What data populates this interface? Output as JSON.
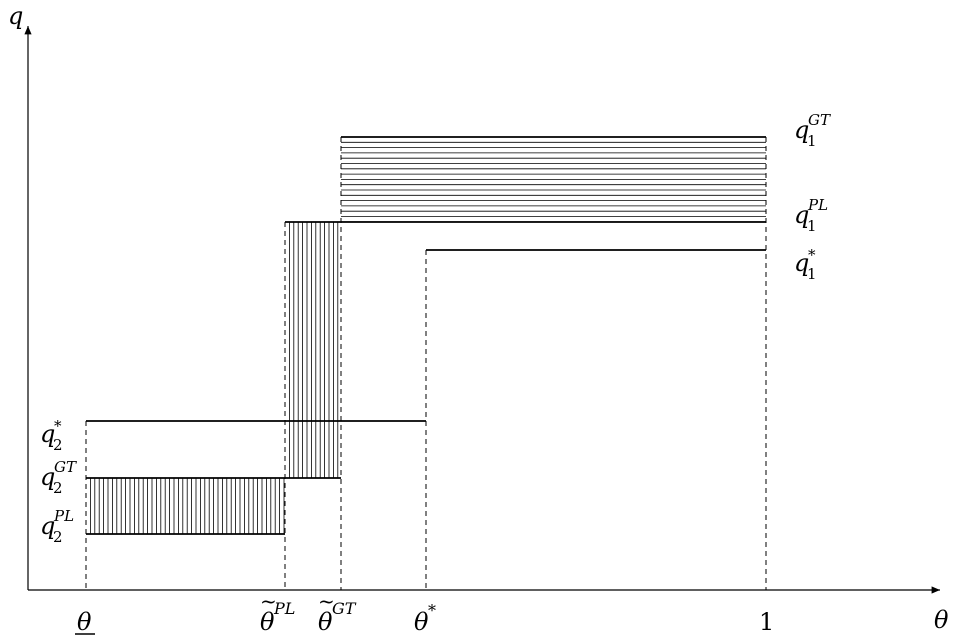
{
  "axes": {
    "y_label": {
      "base": "q"
    },
    "x_label": {
      "base": "θ"
    }
  },
  "x_ticks": [
    {
      "id": "theta-low",
      "base": "θ",
      "sup": "",
      "underline": true,
      "italic": true
    },
    {
      "id": "theta-tilde-pl",
      "base": "θ",
      "sup": "PL",
      "tilde": true,
      "italic": true
    },
    {
      "id": "theta-tilde-gt",
      "base": "θ",
      "sup": "GT",
      "tilde": true,
      "italic": true
    },
    {
      "id": "theta-star",
      "base": "θ",
      "sup": "*",
      "italic": true
    },
    {
      "id": "one",
      "base": "1",
      "sup": "",
      "italic": false
    }
  ],
  "right_labels": [
    {
      "id": "q1-gt",
      "base": "q",
      "sub": "1",
      "sup": "GT"
    },
    {
      "id": "q1-pl",
      "base": "q",
      "sub": "1",
      "sup": "PL"
    },
    {
      "id": "q1-star",
      "base": "q",
      "sub": "1",
      "sup": "*"
    }
  ],
  "left_labels": [
    {
      "id": "q2-star",
      "base": "q",
      "sub": "2",
      "sup": "*"
    },
    {
      "id": "q2-gt",
      "base": "q",
      "sub": "2",
      "sup": "GT"
    },
    {
      "id": "q2-pl",
      "base": "q",
      "sub": "2",
      "sup": "PL"
    }
  ]
}
